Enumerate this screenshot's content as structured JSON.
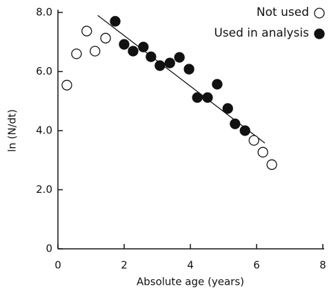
{
  "chart_data": {
    "type": "scatter",
    "x_label": "Absolute age (years)",
    "y_label": "ln (N/dt)",
    "xlim": [
      0,
      8
    ],
    "xticks": [
      0,
      2,
      4,
      6,
      8
    ],
    "ylim": [
      0,
      8
    ],
    "yticks": [
      0,
      {
        "value": 2,
        "label": "2.0"
      },
      {
        "value": 4,
        "label": "4.0"
      },
      {
        "value": 6,
        "label": "6.0"
      },
      {
        "value": 8,
        "label": "8.0"
      }
    ],
    "legend": "top-right",
    "series": [
      {
        "name": "Not used",
        "color": "#111111",
        "marker": "open",
        "x": [
          0.27,
          0.56,
          0.87,
          1.12,
          1.44,
          5.92,
          6.19,
          6.46
        ],
        "values": [
          5.54,
          6.6,
          7.37,
          6.69,
          7.13,
          3.67,
          3.27,
          2.85
        ]
      },
      {
        "name": "Used in analysis",
        "color": "#111111",
        "marker": "filled",
        "x": [
          1.73,
          2.0,
          2.27,
          2.58,
          2.81,
          3.08,
          3.38,
          3.67,
          3.96,
          4.21,
          4.52,
          4.81,
          5.13,
          5.35,
          5.65
        ],
        "values": [
          7.7,
          6.92,
          6.69,
          6.83,
          6.5,
          6.2,
          6.29,
          6.48,
          6.08,
          5.12,
          5.12,
          5.57,
          4.75,
          4.23,
          4.0
        ]
      }
    ],
    "trend_line": {
      "x": [
        1.2,
        6.25
      ],
      "values": [
        7.9,
        3.58
      ],
      "color": "#111111"
    }
  }
}
